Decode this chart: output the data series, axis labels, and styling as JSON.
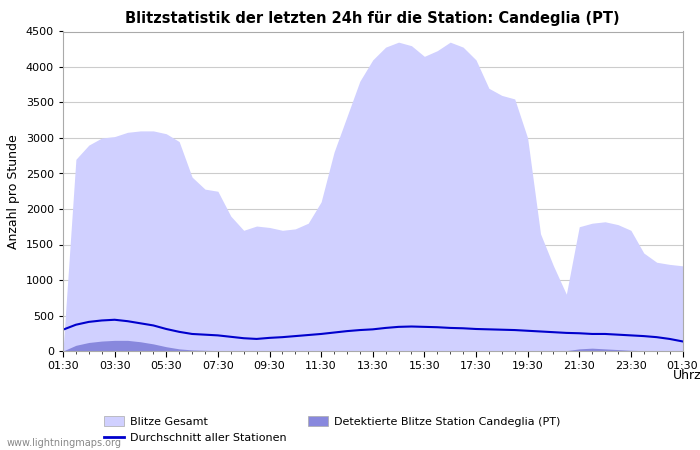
{
  "title": "Blitzstatistik der letzten 24h für die Station: Candeglia (PT)",
  "xlabel": "Uhrzeit",
  "ylabel": "Anzahl pro Stunde",
  "watermark": "www.lightningmaps.org",
  "ylim": [
    0,
    4500
  ],
  "yticks": [
    0,
    500,
    1000,
    1500,
    2000,
    2500,
    3000,
    3500,
    4000,
    4500
  ],
  "time_labels": [
    "01:30",
    "03:30",
    "05:30",
    "07:30",
    "09:30",
    "11:30",
    "13:30",
    "15:30",
    "17:30",
    "19:30",
    "21:30",
    "23:30",
    "01:30"
  ],
  "background_color": "#ffffff",
  "plot_bg_color": "#ffffff",
  "grid_color": "#cccccc",
  "legend_entries": [
    "Blitze Gesamt",
    "Detektierte Blitze Station Candeglia (PT)",
    "Durchschnitt aller Stationen"
  ],
  "color_total": "#d0d0ff",
  "color_station": "#8888dd",
  "color_avg": "#0000cc",
  "x_points": [
    0,
    1,
    2,
    3,
    4,
    5,
    6,
    7,
    8,
    9,
    10,
    11,
    12,
    13,
    14,
    15,
    16,
    17,
    18,
    19,
    20,
    21,
    22,
    23,
    24,
    25,
    26,
    27,
    28,
    29,
    30,
    31,
    32,
    33,
    34,
    35,
    36,
    37,
    38,
    39,
    40,
    41,
    42,
    43,
    44,
    45,
    46,
    47,
    48
  ],
  "y_total": [
    0,
    2700,
    2900,
    3000,
    3020,
    3080,
    3100,
    3100,
    3060,
    2950,
    2450,
    2280,
    2250,
    1900,
    1700,
    1760,
    1740,
    1700,
    1720,
    1800,
    2100,
    2800,
    3300,
    3800,
    4100,
    4280,
    4350,
    4300,
    4150,
    4230,
    4350,
    4280,
    4100,
    3700,
    3600,
    3550,
    3000,
    1650,
    1200,
    800,
    1750,
    1800,
    1820,
    1780,
    1700,
    1380,
    1250,
    1220,
    1200
  ],
  "y_station": [
    0,
    80,
    120,
    140,
    150,
    150,
    130,
    100,
    60,
    30,
    15,
    10,
    5,
    5,
    5,
    5,
    5,
    5,
    5,
    5,
    5,
    5,
    5,
    5,
    5,
    5,
    5,
    5,
    5,
    5,
    5,
    5,
    5,
    5,
    5,
    5,
    5,
    5,
    5,
    5,
    30,
    40,
    30,
    20,
    10,
    5,
    5,
    5,
    5
  ],
  "y_avg": [
    300,
    370,
    410,
    430,
    440,
    420,
    390,
    360,
    310,
    270,
    240,
    230,
    220,
    200,
    180,
    170,
    185,
    195,
    210,
    225,
    240,
    260,
    280,
    295,
    305,
    325,
    340,
    345,
    340,
    335,
    325,
    320,
    310,
    305,
    300,
    295,
    285,
    275,
    265,
    255,
    250,
    240,
    240,
    230,
    220,
    210,
    195,
    170,
    135
  ]
}
